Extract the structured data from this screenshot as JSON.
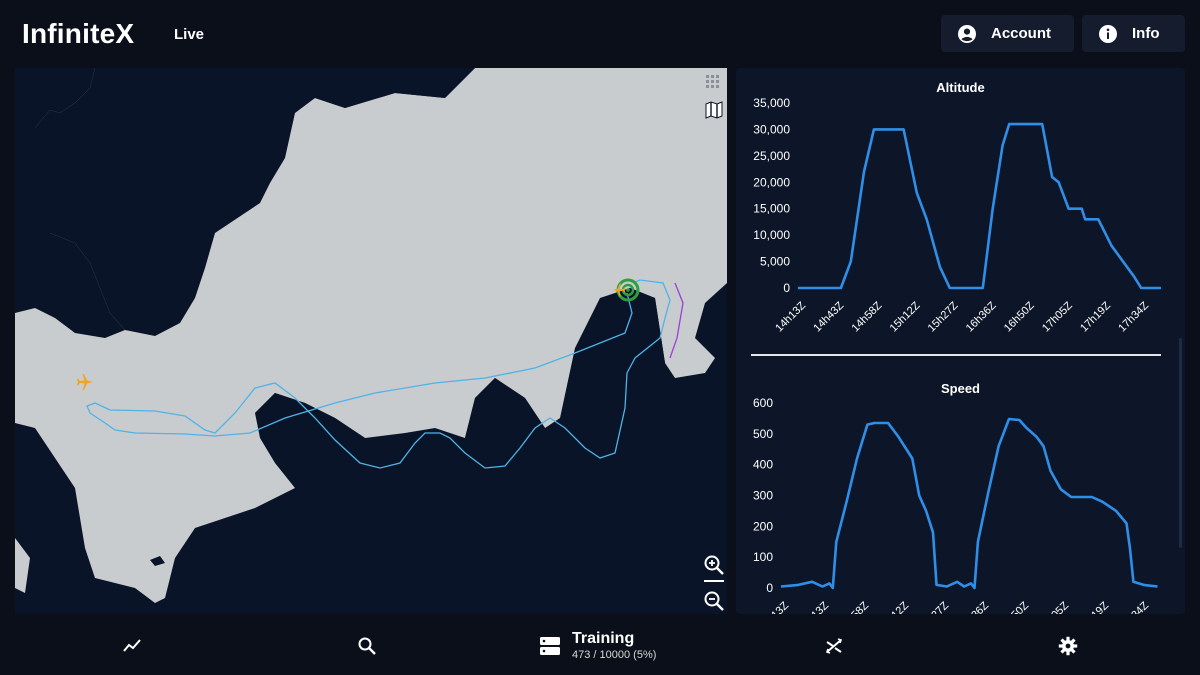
{
  "app": {
    "title": "InfiniteX",
    "mode": "Live"
  },
  "header": {
    "account_label": "Account",
    "info_label": "Info"
  },
  "map": {
    "land_color": "#c9cccf",
    "water_color": "#0a1428",
    "track_color": "#4fb3e6",
    "aircraft_color": "#f2a51c",
    "target_color": "#2e9e3e"
  },
  "charts": {
    "altitude": {
      "title": "Altitude",
      "ticks": [
        "35,000",
        "30,000",
        "25,000",
        "20,000",
        "15,000",
        "10,000",
        "5,000",
        "0"
      ],
      "time_labels": [
        "14h13Z",
        "14h43Z",
        "14h58Z",
        "15h12Z",
        "15h27Z",
        "16h36Z",
        "16h50Z",
        "17h05Z",
        "17h19Z",
        "17h34Z"
      ]
    },
    "speed": {
      "title": "Speed",
      "ticks": [
        "600",
        "500",
        "400",
        "300",
        "200",
        "100",
        "0"
      ],
      "time_labels": [
        "13Z",
        "13Z",
        "58Z",
        "12Z",
        "27Z",
        "36Z",
        "50Z",
        "05Z",
        "19Z",
        "34Z"
      ]
    }
  },
  "chart_data": [
    {
      "type": "line",
      "title": "Altitude",
      "ylim": [
        0,
        35000
      ],
      "line_color": "#2f8fe8",
      "x": [
        "14h13Z",
        "14h43Z",
        "14h58Z",
        "15h12Z",
        "15h27Z",
        "16h36Z",
        "16h50Z",
        "17h05Z",
        "17h19Z",
        "17h34Z"
      ],
      "series": [
        {
          "points": [
            [
              0,
              0
            ],
            [
              1.3,
              0
            ],
            [
              1.6,
              5000
            ],
            [
              2.0,
              22000
            ],
            [
              2.3,
              30000
            ],
            [
              3.2,
              30000
            ],
            [
              3.6,
              18000
            ],
            [
              3.9,
              13000
            ],
            [
              4.3,
              4000
            ],
            [
              4.6,
              0
            ],
            [
              5.6,
              0
            ],
            [
              5.9,
              15000
            ],
            [
              6.2,
              27000
            ],
            [
              6.4,
              31000
            ],
            [
              7.4,
              31000
            ],
            [
              7.7,
              21000
            ],
            [
              7.9,
              20000
            ],
            [
              8.2,
              15000
            ],
            [
              8.6,
              15000
            ],
            [
              8.7,
              13000
            ],
            [
              9.1,
              13000
            ],
            [
              9.5,
              8000
            ],
            [
              10.2,
              2000
            ],
            [
              10.4,
              0
            ],
            [
              11.0,
              0
            ]
          ]
        }
      ]
    },
    {
      "type": "line",
      "title": "Speed",
      "ylim": [
        0,
        600
      ],
      "line_color": "#2f8fe8",
      "x": [
        "13Z",
        "13Z",
        "58Z",
        "12Z",
        "27Z",
        "36Z",
        "50Z",
        "05Z",
        "19Z",
        "34Z"
      ],
      "series": [
        {
          "points": [
            [
              0,
              5
            ],
            [
              0.5,
              10
            ],
            [
              0.9,
              20
            ],
            [
              1.2,
              5
            ],
            [
              1.4,
              15
            ],
            [
              1.5,
              0
            ],
            [
              1.6,
              150
            ],
            [
              1.9,
              280
            ],
            [
              2.2,
              420
            ],
            [
              2.5,
              530
            ],
            [
              2.7,
              535
            ],
            [
              3.1,
              535
            ],
            [
              3.4,
              490
            ],
            [
              3.8,
              420
            ],
            [
              4.0,
              300
            ],
            [
              4.2,
              250
            ],
            [
              4.4,
              180
            ],
            [
              4.5,
              10
            ],
            [
              4.8,
              5
            ],
            [
              5.1,
              20
            ],
            [
              5.3,
              5
            ],
            [
              5.5,
              15
            ],
            [
              5.6,
              0
            ],
            [
              5.7,
              150
            ],
            [
              6.0,
              310
            ],
            [
              6.3,
              460
            ],
            [
              6.6,
              548
            ],
            [
              6.9,
              545
            ],
            [
              7.1,
              520
            ],
            [
              7.4,
              490
            ],
            [
              7.6,
              460
            ],
            [
              7.8,
              380
            ],
            [
              8.1,
              320
            ],
            [
              8.4,
              295
            ],
            [
              9.0,
              295
            ],
            [
              9.3,
              280
            ],
            [
              9.7,
              250
            ],
            [
              10.0,
              210
            ],
            [
              10.1,
              130
            ],
            [
              10.2,
              20
            ],
            [
              10.5,
              10
            ],
            [
              10.9,
              5
            ]
          ]
        }
      ]
    }
  ],
  "training": {
    "title": "Training",
    "progress_text": "473 / 10000 (5%)",
    "current": 473,
    "total": 10000
  }
}
